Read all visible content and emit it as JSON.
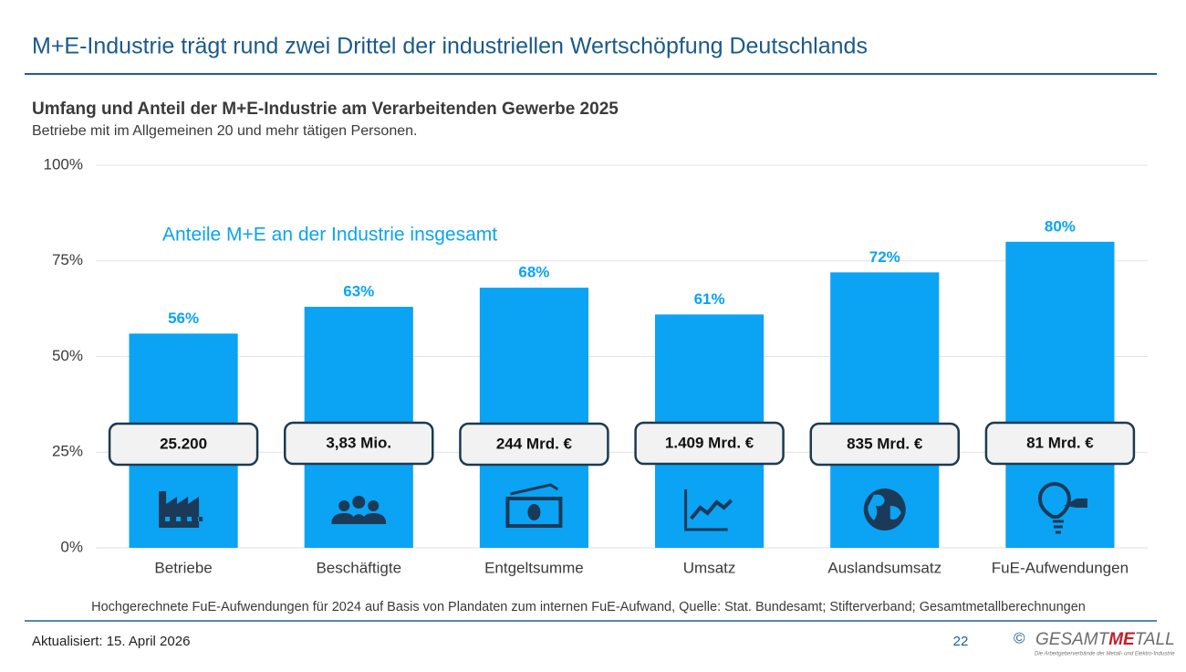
{
  "slide": {
    "title": "M+E-Industrie trägt rund zwei Drittel der industriellen Wertschöpfung Deutschlands",
    "footnote": "Hochgerechnete FuE-Aufwendungen für 2024 auf Basis von Plandaten zum internen FuE-Aufwand, Quelle: Stat. Bundesamt; Stifterverband; Gesamtmetallberechnungen",
    "updated": "Aktualisiert: 15. April 2026",
    "page": "22"
  },
  "logo": {
    "symbol": "©",
    "name_start": "GESAMT",
    "name_mark": "ME",
    "name_end": "TALL",
    "tagline": "Die Arbeitgeberverbände der Metall- und Elektro-Industrie"
  },
  "chart_data": {
    "type": "bar",
    "title": "Umfang und Anteil der M+E-Industrie am Verarbeitenden Gewerbe 2025",
    "subtitle": "Betriebe mit im Allgemeinen 20 und mehr tätigen Personen.",
    "annotation": "Anteile M+E an der Industrie insgesamt",
    "categories": [
      "Betriebe",
      "Beschäftigte",
      "Entgeltsumme",
      "Umsatz",
      "Auslandsumsatz",
      "FuE-Aufwendungen"
    ],
    "values": [
      56,
      63,
      68,
      61,
      72,
      80
    ],
    "value_labels": [
      "56%",
      "63%",
      "68%",
      "61%",
      "72%",
      "80%"
    ],
    "absolute_labels": [
      "25.200",
      "3,83 Mio.",
      "244 Mrd. €",
      "1.409 Mrd. €",
      "835 Mrd. €",
      "81 Mrd. €"
    ],
    "color": "#0ba3f3",
    "ylim": [
      0,
      100
    ],
    "yticks": [
      {
        "value": 0,
        "label": "0%"
      },
      {
        "value": 25,
        "label": "25%"
      },
      {
        "value": 50,
        "label": "50%"
      },
      {
        "value": 75,
        "label": "75%"
      },
      {
        "value": 100,
        "label": "100%"
      }
    ],
    "grid": true
  }
}
